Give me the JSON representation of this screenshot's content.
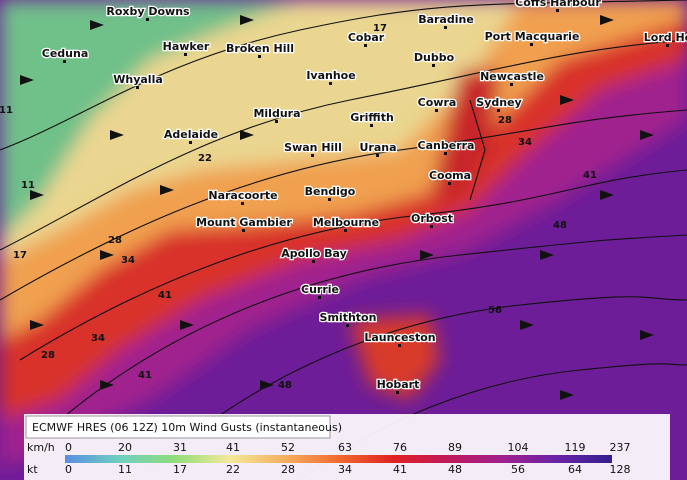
{
  "places": [
    "Roxby Downs",
    "Ceduna",
    "Hawker",
    "Broken Hill",
    "Whyalla",
    "Cobar",
    "Baradine",
    "Coffs Harbour",
    "Port Macquarie",
    "Lord Ho",
    "Dubbo",
    "Ivanhoe",
    "Newcastle",
    "Mildura",
    "Griffith",
    "Cowra",
    "Sydney",
    "Adelaide",
    "Swan Hill",
    "Urana",
    "Canberra",
    "Cooma",
    "Naracoorte",
    "Bendigo",
    "Orbost",
    "Mount Gambier",
    "Melbourne",
    "Apollo Bay",
    "Currie",
    "Smithton",
    "Launceston",
    "Hobart"
  ],
  "contour_labels": [
    11,
    11,
    17,
    17,
    22,
    28,
    28,
    34,
    34,
    41,
    41,
    48,
    48,
    56,
    41,
    34,
    28
  ],
  "legend": {
    "title": "ECMWF HRES (06 12Z) 10m Wind Gusts (instantaneous)",
    "kmh_label": "km/h",
    "kmh_values": [
      0,
      20,
      31,
      41,
      52,
      63,
      76,
      89,
      104,
      119,
      237
    ],
    "kt_label": "kt",
    "kt_values": [
      0,
      11,
      17,
      22,
      28,
      34,
      41,
      48,
      56,
      64,
      128
    ]
  }
}
